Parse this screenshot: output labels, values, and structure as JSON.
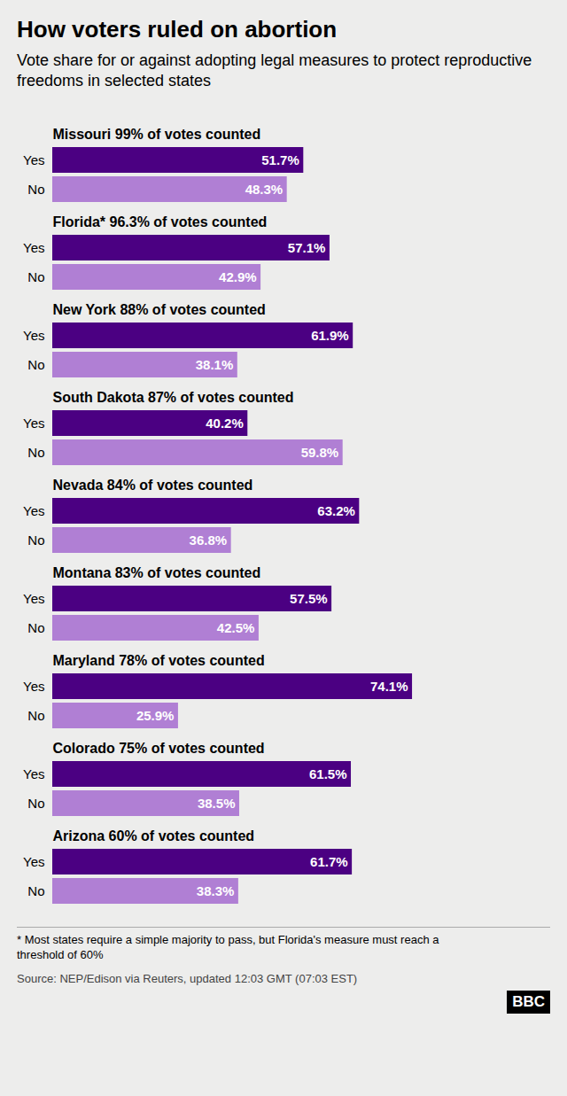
{
  "chart_data": {
    "type": "bar",
    "orientation": "horizontal",
    "title": "How voters ruled on abortion",
    "subtitle": "Vote share for or against adopting legal measures to protect reproductive freedoms in selected states",
    "categories": [
      "Missouri 99% of votes counted",
      "Florida* 96.3% of votes counted",
      "New York 88% of votes counted",
      "South Dakota 87% of votes counted",
      "Nevada 84% of votes counted",
      "Montana 83% of votes counted",
      "Maryland 78% of votes counted",
      "Colorado 75% of votes counted",
      "Arizona 60% of votes counted"
    ],
    "series": [
      {
        "name": "Yes",
        "color": "#4b0082",
        "values": [
          51.7,
          57.1,
          61.9,
          40.2,
          63.2,
          57.5,
          74.1,
          61.5,
          61.7
        ],
        "value_labels": [
          "51.7%",
          "57.1%",
          "61.9%",
          "40.2%",
          "63.2%",
          "57.5%",
          "74.1%",
          "61.5%",
          "61.7%"
        ]
      },
      {
        "name": "No",
        "color": "#b07fd4",
        "values": [
          48.3,
          42.9,
          38.1,
          59.8,
          36.8,
          42.5,
          25.9,
          38.5,
          38.3
        ],
        "value_labels": [
          "48.3%",
          "42.9%",
          "38.1%",
          "59.8%",
          "36.8%",
          "42.5%",
          "25.9%",
          "38.5%",
          "38.3%"
        ]
      }
    ],
    "xlim": [
      0,
      100
    ],
    "data_labels": true,
    "tick_labels": "y",
    "grid": false,
    "footnote": "* Most states require a simple majority to pass, but Florida's measure must reach a\nthreshold of 60%",
    "source": "Source: NEP/Edison via Reuters, updated 12:03 GMT (07:03 EST)",
    "annotations": [
      "BBC"
    ]
  }
}
